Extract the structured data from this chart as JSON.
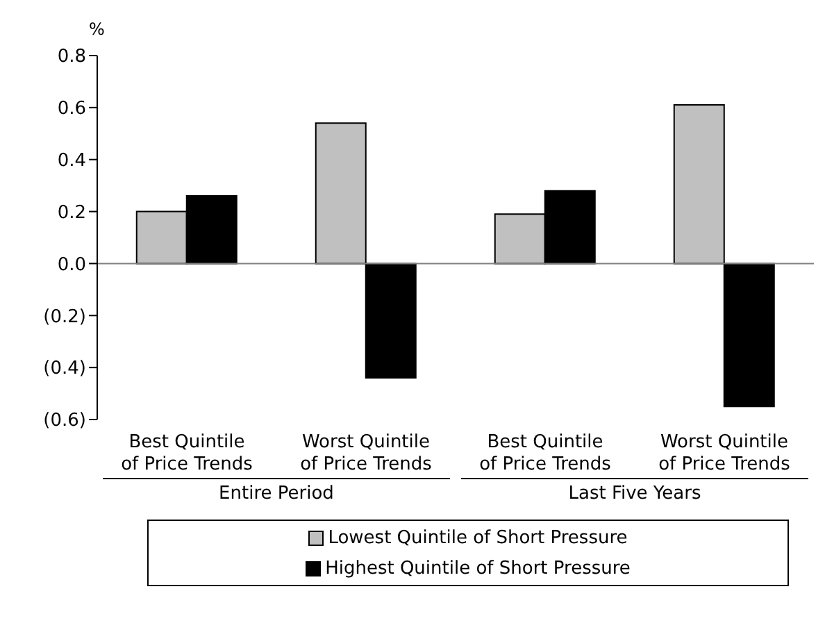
{
  "chart_data": {
    "type": "bar",
    "ylabel": "%",
    "categories": [
      "Best Quintile of Price Trends",
      "Worst Quintile of Price Trends",
      "Best Quintile of Price Trends",
      "Worst Quintile of Price Trends"
    ],
    "annotations": [
      "Entire Period",
      "Last Five Years"
    ],
    "series": [
      {
        "name": "Lowest Quintile of Short Pressure",
        "color": "#c0c0c0",
        "values": [
          0.2,
          0.54,
          0.19,
          0.61
        ]
      },
      {
        "name": "Highest Quintile of Short Pressure",
        "color": "#000000",
        "values": [
          0.26,
          -0.44,
          0.28,
          -0.55
        ]
      }
    ],
    "ylim": [
      -0.6,
      0.8
    ],
    "yticks": [
      {
        "value": -0.6,
        "label": "(0.6)"
      },
      {
        "value": -0.4,
        "label": "(0.4)"
      },
      {
        "value": -0.2,
        "label": "(0.2)"
      },
      {
        "value": 0,
        "label": "0.0"
      },
      {
        "value": 0.2,
        "label": "0.2"
      },
      {
        "value": 0.4,
        "label": "0.4"
      },
      {
        "value": 0.6,
        "label": "0.6"
      },
      {
        "value": 0.8,
        "label": "0.8"
      }
    ],
    "legend": "bottom"
  }
}
